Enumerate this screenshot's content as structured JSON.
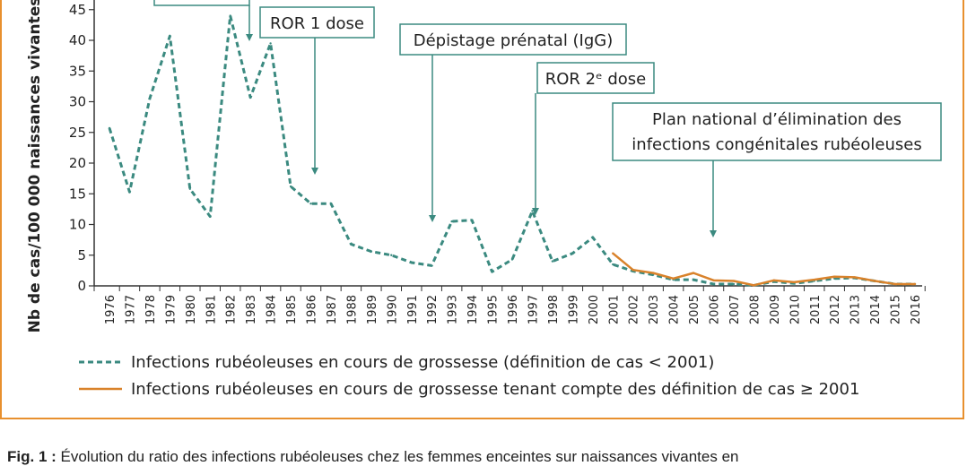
{
  "chart_data": {
    "type": "line",
    "ylabel": "Nb de cas/100 000 naissances vivantes",
    "ylim": [
      0,
      50
    ],
    "yticks": [
      0,
      5,
      10,
      15,
      20,
      25,
      30,
      35,
      40,
      45
    ],
    "x": [
      "1976",
      "1977",
      "1978",
      "1979",
      "1980",
      "1981",
      "1982",
      "1983",
      "1984",
      "1985",
      "1986",
      "1987",
      "1988",
      "1989",
      "1990",
      "1991",
      "1992",
      "1993",
      "1994",
      "1995",
      "1996",
      "1997",
      "1998",
      "1999",
      "2000",
      "2001",
      "2002",
      "2003",
      "2004",
      "2005",
      "2006",
      "2007",
      "2008",
      "2009",
      "2010",
      "2011",
      "2012",
      "2013",
      "2014",
      "2015",
      "2016"
    ],
    "series": [
      {
        "name": "Infections rubéoleuses en cours de grossesse (définition de cas < 2001)",
        "color": "#3b8a80",
        "style": "dashed",
        "x": [
          "1976",
          "1977",
          "1978",
          "1979",
          "1980",
          "1981",
          "1982",
          "1983",
          "1984",
          "1985",
          "1986",
          "1987",
          "1988",
          "1989",
          "1990",
          "1991",
          "1992",
          "1993",
          "1994",
          "1995",
          "1996",
          "1997",
          "1998",
          "1999",
          "2000",
          "2001",
          "2002",
          "2003",
          "2004",
          "2005",
          "2006",
          "2007",
          "2008",
          "2009",
          "2010",
          "2011",
          "2012",
          "2013",
          "2014",
          "2015",
          "2016"
        ],
        "values": [
          25.7,
          15.3,
          30.5,
          40.7,
          15.8,
          11.3,
          44.0,
          30.7,
          39.5,
          16.2,
          13.4,
          13.4,
          6.8,
          5.6,
          5.0,
          3.8,
          3.3,
          10.5,
          10.7,
          2.3,
          4.3,
          12.2,
          4.0,
          5.3,
          7.9,
          3.5,
          2.4,
          1.8,
          1.0,
          1.0,
          0.3,
          0.3,
          0.1,
          0.7,
          0.4,
          0.8,
          1.2,
          1.3,
          0.8,
          0.3,
          0.3
        ]
      },
      {
        "name": "Infections rubéoleuses en cours de grossesse tenant compte des définition de cas ≥ 2001",
        "color": "#d9822b",
        "style": "solid",
        "x": [
          "2001",
          "2002",
          "2003",
          "2004",
          "2005",
          "2006",
          "2007",
          "2008",
          "2009",
          "2010",
          "2011",
          "2012",
          "2013",
          "2014",
          "2015",
          "2016"
        ],
        "values": [
          5.3,
          2.6,
          2.1,
          1.2,
          2.1,
          0.9,
          0.8,
          0.1,
          0.9,
          0.6,
          1.0,
          1.5,
          1.4,
          0.8,
          0.3,
          0.3
        ]
      }
    ],
    "annotations": [
      {
        "lines": [
          "ROR 1 dose"
        ],
        "year": "1986"
      },
      {
        "lines": [
          "Dépistage prénatal (IgG)"
        ],
        "year": "1992"
      },
      {
        "lines": [
          "ROR 2ᵉ dose"
        ],
        "year": "1997"
      },
      {
        "lines": [
          "Plan national d’élimination des",
          "infections congénitales rubéoleuses"
        ],
        "year": "2006"
      }
    ],
    "legend": "bottom"
  },
  "caption": {
    "label": "Fig. 1 :",
    "text": "Évolution du ratio des infections rubéoleuses chez les femmes enceintes sur naissances vivantes en"
  }
}
